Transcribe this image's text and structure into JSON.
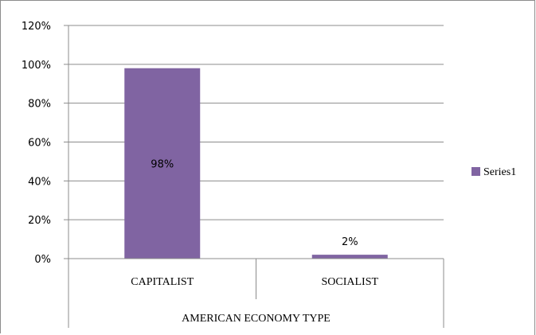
{
  "chart_data": {
    "type": "bar",
    "categories": [
      "CAPITALIST",
      "SOCIALIST"
    ],
    "series": [
      {
        "name": "Series1",
        "values": [
          98,
          2
        ],
        "color": "#8064a2"
      }
    ],
    "data_labels": [
      "98%",
      "2%"
    ],
    "xlabel": "AMERICAN ECONOMY TYPE",
    "ylabel": "",
    "ylim": [
      0,
      120
    ],
    "yticks": [
      0,
      20,
      40,
      60,
      80,
      100,
      120
    ],
    "ytick_labels": [
      "0%",
      "20%",
      "40%",
      "60%",
      "80%",
      "100%",
      "120%"
    ],
    "grid": true,
    "legend_position": "right"
  }
}
